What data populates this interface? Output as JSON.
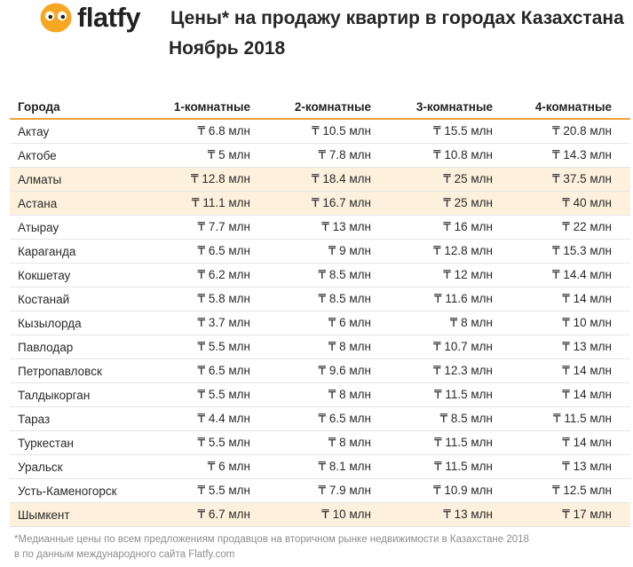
{
  "brand": {
    "name": "flatfy"
  },
  "title": "Цены* на продажу квартир в городах Казахстана",
  "subtitle": "Ноябрь 2018",
  "chart_data": {
    "type": "table",
    "columns": [
      "Города",
      "1-комнатные",
      "2-комнатные",
      "3-комнатные",
      "4-комнатные"
    ],
    "currency_prefix": "₸",
    "unit": "млн",
    "rows": [
      {
        "city": "Актау",
        "values": [
          6.8,
          10.5,
          15.5,
          20.8
        ],
        "highlight": false
      },
      {
        "city": "Актобе",
        "values": [
          5,
          7.8,
          10.8,
          14.3
        ],
        "highlight": false
      },
      {
        "city": "Алматы",
        "values": [
          12.8,
          18.4,
          25,
          37.5
        ],
        "highlight": true
      },
      {
        "city": "Астана",
        "values": [
          11.1,
          16.7,
          25,
          40
        ],
        "highlight": true
      },
      {
        "city": "Атырау",
        "values": [
          7.7,
          13,
          16,
          22
        ],
        "highlight": false
      },
      {
        "city": "Караганда",
        "values": [
          6.5,
          9,
          12.8,
          15.3
        ],
        "highlight": false
      },
      {
        "city": "Кокшетау",
        "values": [
          6.2,
          8.5,
          12,
          14.4
        ],
        "highlight": false
      },
      {
        "city": "Костанай",
        "values": [
          5.8,
          8.5,
          11.6,
          14
        ],
        "highlight": false
      },
      {
        "city": "Кызылорда",
        "values": [
          3.7,
          6,
          8,
          10
        ],
        "highlight": false
      },
      {
        "city": "Павлодар",
        "values": [
          5.5,
          8,
          10.7,
          13
        ],
        "highlight": false
      },
      {
        "city": "Петропавловск",
        "values": [
          6.5,
          9.6,
          12.3,
          14
        ],
        "highlight": false
      },
      {
        "city": "Талдыкорган",
        "values": [
          5.5,
          8,
          11.5,
          14
        ],
        "highlight": false
      },
      {
        "city": "Тараз",
        "values": [
          4.4,
          6.5,
          8.5,
          11.5
        ],
        "highlight": false
      },
      {
        "city": "Туркестан",
        "values": [
          5.5,
          8,
          11.5,
          14
        ],
        "highlight": false
      },
      {
        "city": "Уральск",
        "values": [
          6,
          8.1,
          11.5,
          13
        ],
        "highlight": false
      },
      {
        "city": "Усть-Каменогорск",
        "values": [
          5.5,
          7.9,
          10.9,
          12.5
        ],
        "highlight": false
      },
      {
        "city": "Шымкент",
        "values": [
          6.7,
          10,
          13,
          17
        ],
        "highlight": true
      }
    ]
  },
  "footnote": {
    "line1": "*Медианные цены по всем предложениям продавцов на вторичном рынке недвижимости в Казахстане 2018",
    "line2": "в по данным международного сайта Flatfy.com"
  },
  "colors": {
    "brand_orange": "#f5a623",
    "row_highlight": "#fdf0dc",
    "header_rule": "#f0a23c"
  }
}
